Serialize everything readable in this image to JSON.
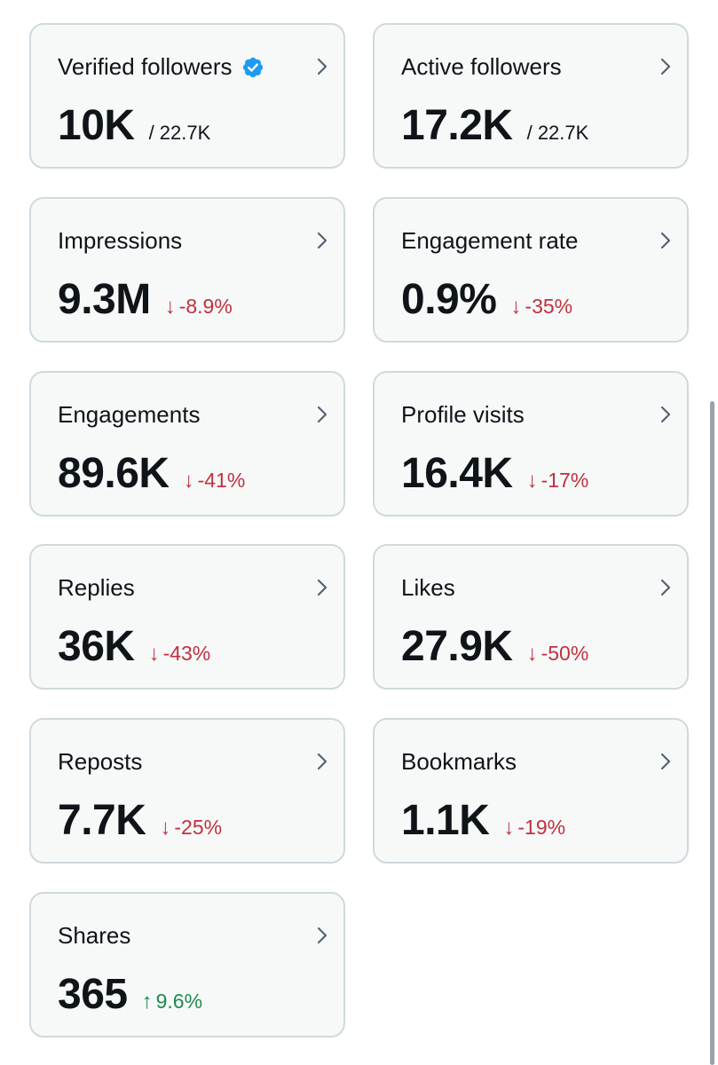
{
  "cards": [
    {
      "label": "Verified followers",
      "value": "10K",
      "total": "/ 22.7K",
      "verified": true
    },
    {
      "label": "Active followers",
      "value": "17.2K",
      "total": "/ 22.7K"
    },
    {
      "label": "Impressions",
      "value": "9.3M",
      "change": "-8.9%",
      "direction": "down",
      "arrow": "↓"
    },
    {
      "label": "Engagement rate",
      "value": "0.9%",
      "change": "-35%",
      "direction": "down",
      "arrow": "↓"
    },
    {
      "label": "Engagements",
      "value": "89.6K",
      "change": "-41%",
      "direction": "down",
      "arrow": "↓"
    },
    {
      "label": "Profile visits",
      "value": "16.4K",
      "change": "-17%",
      "direction": "down",
      "arrow": "↓"
    },
    {
      "label": "Replies",
      "value": "36K",
      "change": "-43%",
      "direction": "down",
      "arrow": "↓"
    },
    {
      "label": "Likes",
      "value": "27.9K",
      "change": "-50%",
      "direction": "down",
      "arrow": "↓"
    },
    {
      "label": "Reposts",
      "value": "7.7K",
      "change": "-25%",
      "direction": "down",
      "arrow": "↓"
    },
    {
      "label": "Bookmarks",
      "value": "1.1K",
      "change": "-19%",
      "direction": "down",
      "arrow": "↓"
    },
    {
      "label": "Shares",
      "value": "365",
      "change": "9.6%",
      "direction": "up",
      "arrow": "↑"
    }
  ],
  "colors": {
    "card_background": "#f7f9f9",
    "card_border": "#cfd9de",
    "text_primary": "#0f1419",
    "chevron": "#536471",
    "verified_badge": "#1d9bf0",
    "change_down": "#c1303d",
    "change_up": "#1f8a4c"
  },
  "icons": {
    "verified": "verified-badge-icon",
    "chevron": "chevron-right-icon",
    "down": "arrow-down-icon",
    "up": "arrow-up-icon"
  }
}
